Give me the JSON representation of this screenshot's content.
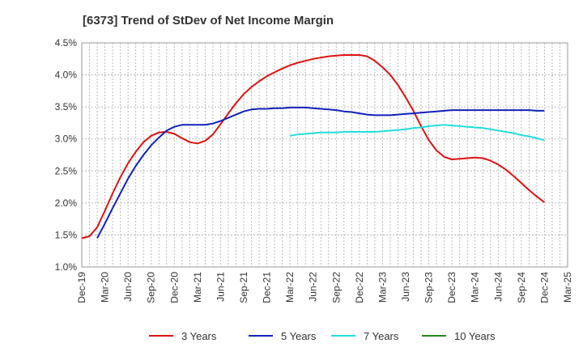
{
  "chart_data": {
    "type": "line",
    "title": "[6373]  Trend of StDev of Net Income Margin",
    "xlabel": "",
    "ylabel": "",
    "x_ticks": [
      "Dec-19",
      "Mar-20",
      "Jun-20",
      "Sep-20",
      "Dec-20",
      "Mar-21",
      "Jun-21",
      "Sep-21",
      "Dec-21",
      "Mar-22",
      "Jun-22",
      "Sep-22",
      "Dec-22",
      "Mar-23",
      "Jun-23",
      "Sep-23",
      "Dec-23",
      "Mar-24",
      "Jun-24",
      "Sep-24",
      "Dec-24",
      "Mar-25"
    ],
    "y_ticks": [
      "1.0%",
      "1.5%",
      "2.0%",
      "2.5%",
      "3.0%",
      "3.5%",
      "4.0%",
      "4.5%"
    ],
    "ylim": [
      1.0,
      4.5
    ],
    "xlim": [
      "2019-12",
      "2025-03"
    ],
    "grid": true,
    "legend_position": "bottom",
    "series": [
      {
        "name": "3 Years",
        "color": "#dd1111",
        "points": [
          [
            "2019-12",
            1.45
          ],
          [
            "2020-01",
            1.48
          ],
          [
            "2020-02",
            1.62
          ],
          [
            "2020-03",
            1.88
          ],
          [
            "2020-04",
            2.15
          ],
          [
            "2020-05",
            2.4
          ],
          [
            "2020-06",
            2.62
          ],
          [
            "2020-07",
            2.8
          ],
          [
            "2020-08",
            2.95
          ],
          [
            "2020-09",
            3.05
          ],
          [
            "2020-10",
            3.1
          ],
          [
            "2020-11",
            3.11
          ],
          [
            "2020-12",
            3.08
          ],
          [
            "2021-01",
            3.01
          ],
          [
            "2021-02",
            2.95
          ],
          [
            "2021-03",
            2.93
          ],
          [
            "2021-04",
            2.97
          ],
          [
            "2021-05",
            3.07
          ],
          [
            "2021-06",
            3.23
          ],
          [
            "2021-07",
            3.4
          ],
          [
            "2021-08",
            3.56
          ],
          [
            "2021-09",
            3.7
          ],
          [
            "2021-10",
            3.81
          ],
          [
            "2021-11",
            3.9
          ],
          [
            "2021-12",
            3.98
          ],
          [
            "2022-01",
            4.04
          ],
          [
            "2022-02",
            4.1
          ],
          [
            "2022-03",
            4.15
          ],
          [
            "2022-04",
            4.19
          ],
          [
            "2022-05",
            4.22
          ],
          [
            "2022-06",
            4.25
          ],
          [
            "2022-07",
            4.27
          ],
          [
            "2022-08",
            4.29
          ],
          [
            "2022-09",
            4.3
          ],
          [
            "2022-10",
            4.31
          ],
          [
            "2022-11",
            4.31
          ],
          [
            "2022-12",
            4.31
          ],
          [
            "2023-01",
            4.29
          ],
          [
            "2023-02",
            4.22
          ],
          [
            "2023-03",
            4.12
          ],
          [
            "2023-04",
            4.0
          ],
          [
            "2023-05",
            3.84
          ],
          [
            "2023-06",
            3.65
          ],
          [
            "2023-07",
            3.44
          ],
          [
            "2023-08",
            3.2
          ],
          [
            "2023-09",
            2.98
          ],
          [
            "2023-10",
            2.82
          ],
          [
            "2023-11",
            2.72
          ],
          [
            "2023-12",
            2.68
          ],
          [
            "2024-01",
            2.69
          ],
          [
            "2024-02",
            2.7
          ],
          [
            "2024-03",
            2.71
          ],
          [
            "2024-04",
            2.7
          ],
          [
            "2024-05",
            2.66
          ],
          [
            "2024-06",
            2.6
          ],
          [
            "2024-07",
            2.52
          ],
          [
            "2024-08",
            2.42
          ],
          [
            "2024-09",
            2.31
          ],
          [
            "2024-10",
            2.2
          ],
          [
            "2024-11",
            2.1
          ],
          [
            "2024-12",
            2.01
          ]
        ]
      },
      {
        "name": "5 Years",
        "color": "#1122bb",
        "points": [
          [
            "2020-02",
            1.45
          ],
          [
            "2020-03",
            1.68
          ],
          [
            "2020-04",
            1.92
          ],
          [
            "2020-05",
            2.15
          ],
          [
            "2020-06",
            2.38
          ],
          [
            "2020-07",
            2.58
          ],
          [
            "2020-08",
            2.75
          ],
          [
            "2020-09",
            2.9
          ],
          [
            "2020-10",
            3.02
          ],
          [
            "2020-11",
            3.13
          ],
          [
            "2020-12",
            3.19
          ],
          [
            "2021-01",
            3.22
          ],
          [
            "2021-02",
            3.22
          ],
          [
            "2021-03",
            3.22
          ],
          [
            "2021-04",
            3.22
          ],
          [
            "2021-05",
            3.24
          ],
          [
            "2021-06",
            3.28
          ],
          [
            "2021-07",
            3.33
          ],
          [
            "2021-08",
            3.38
          ],
          [
            "2021-09",
            3.43
          ],
          [
            "2021-10",
            3.46
          ],
          [
            "2021-11",
            3.47
          ],
          [
            "2021-12",
            3.47
          ],
          [
            "2022-01",
            3.48
          ],
          [
            "2022-02",
            3.48
          ],
          [
            "2022-03",
            3.49
          ],
          [
            "2022-04",
            3.49
          ],
          [
            "2022-05",
            3.49
          ],
          [
            "2022-06",
            3.48
          ],
          [
            "2022-07",
            3.47
          ],
          [
            "2022-08",
            3.46
          ],
          [
            "2022-09",
            3.45
          ],
          [
            "2022-10",
            3.43
          ],
          [
            "2022-11",
            3.42
          ],
          [
            "2022-12",
            3.4
          ],
          [
            "2023-01",
            3.38
          ],
          [
            "2023-02",
            3.37
          ],
          [
            "2023-03",
            3.37
          ],
          [
            "2023-04",
            3.37
          ],
          [
            "2023-05",
            3.38
          ],
          [
            "2023-06",
            3.39
          ],
          [
            "2023-07",
            3.4
          ],
          [
            "2023-08",
            3.41
          ],
          [
            "2023-09",
            3.42
          ],
          [
            "2023-10",
            3.43
          ],
          [
            "2023-11",
            3.44
          ],
          [
            "2023-12",
            3.45
          ],
          [
            "2024-01",
            3.45
          ],
          [
            "2024-02",
            3.45
          ],
          [
            "2024-03",
            3.45
          ],
          [
            "2024-04",
            3.45
          ],
          [
            "2024-05",
            3.45
          ],
          [
            "2024-06",
            3.45
          ],
          [
            "2024-07",
            3.45
          ],
          [
            "2024-08",
            3.45
          ],
          [
            "2024-09",
            3.45
          ],
          [
            "2024-10",
            3.45
          ],
          [
            "2024-11",
            3.44
          ],
          [
            "2024-12",
            3.44
          ]
        ]
      },
      {
        "name": "7 Years",
        "color": "#22dddd",
        "points": [
          [
            "2022-03",
            3.05
          ],
          [
            "2022-04",
            3.07
          ],
          [
            "2022-05",
            3.08
          ],
          [
            "2022-06",
            3.09
          ],
          [
            "2022-07",
            3.1
          ],
          [
            "2022-08",
            3.1
          ],
          [
            "2022-09",
            3.1
          ],
          [
            "2022-10",
            3.11
          ],
          [
            "2022-11",
            3.11
          ],
          [
            "2022-12",
            3.11
          ],
          [
            "2023-01",
            3.11
          ],
          [
            "2023-02",
            3.11
          ],
          [
            "2023-03",
            3.12
          ],
          [
            "2023-04",
            3.13
          ],
          [
            "2023-05",
            3.14
          ],
          [
            "2023-06",
            3.15
          ],
          [
            "2023-07",
            3.17
          ],
          [
            "2023-08",
            3.18
          ],
          [
            "2023-09",
            3.2
          ],
          [
            "2023-10",
            3.21
          ],
          [
            "2023-11",
            3.22
          ],
          [
            "2023-12",
            3.21
          ],
          [
            "2024-01",
            3.2
          ],
          [
            "2024-02",
            3.19
          ],
          [
            "2024-03",
            3.18
          ],
          [
            "2024-04",
            3.17
          ],
          [
            "2024-05",
            3.15
          ],
          [
            "2024-06",
            3.13
          ],
          [
            "2024-07",
            3.11
          ],
          [
            "2024-08",
            3.09
          ],
          [
            "2024-09",
            3.06
          ],
          [
            "2024-10",
            3.04
          ],
          [
            "2024-11",
            3.01
          ],
          [
            "2024-12",
            2.98
          ]
        ]
      },
      {
        "name": "10 Years",
        "color": "#228822",
        "points": []
      }
    ]
  }
}
